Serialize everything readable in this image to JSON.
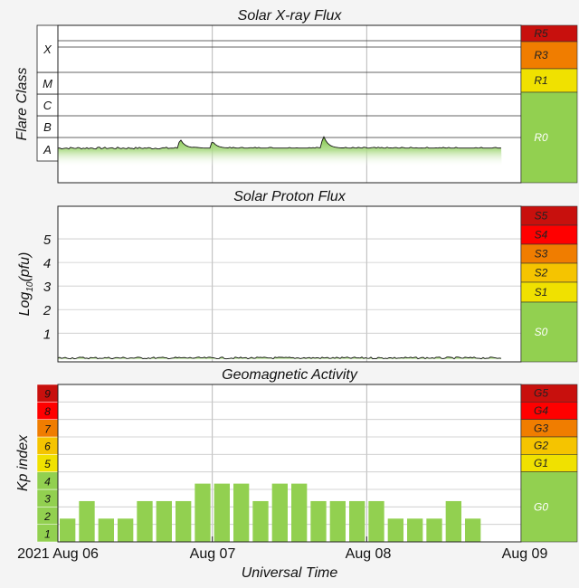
{
  "chart_data": [
    {
      "type": "area",
      "title": "Solar X-ray Flux",
      "ylabel": "Flare Class",
      "y_scale": "log",
      "y_categories": [
        "A",
        "B",
        "C",
        "M",
        "X"
      ],
      "x_range": [
        "2021-08-06T00:00",
        "2021-08-09T00:00"
      ],
      "data_end": "2021-08-08T21:00",
      "baseline_class": "A",
      "baseline_level": 0.55,
      "peaks": [
        {
          "time": "2021-08-06T19:00",
          "level": 0.95
        },
        {
          "time": "2021-08-07T00:00",
          "level": 0.85
        },
        {
          "time": "2021-08-07T17:15",
          "level": 1.1
        }
      ],
      "scale_labels": [
        "R5",
        "R3",
        "R1",
        "R0"
      ],
      "scale_colors": [
        "#c8100d",
        "#f07d00",
        "#f0e100",
        "#92d050"
      ]
    },
    {
      "type": "area",
      "title": "Solar Proton Flux",
      "ylabel": "Log10(pfu)",
      "ylabel_main": "Log",
      "ylabel_sub": "10",
      "ylabel_tail": "(pfu)",
      "ylim": [
        -0.6,
        6
      ],
      "yticks": [
        1,
        2,
        3,
        4,
        5
      ],
      "x_range": [
        "2021-08-06T00:00",
        "2021-08-09T00:00"
      ],
      "data_end": "2021-08-08T21:00",
      "value": -0.05,
      "scale_labels": [
        "S5",
        "S4",
        "S3",
        "S2",
        "S1",
        "S0"
      ],
      "scale_colors": [
        "#c8100d",
        "#ff0000",
        "#f07d00",
        "#f5c400",
        "#f0e100",
        "#92d050"
      ]
    },
    {
      "type": "bar",
      "title": "Geomagnetic Activity",
      "ylabel": "Kp index",
      "xlabel": "Universal Time",
      "ylim": [
        0,
        9
      ],
      "kp_labels": [
        "1",
        "2",
        "3",
        "4",
        "5",
        "6",
        "7",
        "8",
        "9"
      ],
      "kp_colors": [
        "#92d050",
        "#92d050",
        "#92d050",
        "#92d050",
        "#f0e100",
        "#f5c400",
        "#f07d00",
        "#ff0000",
        "#c8100d"
      ],
      "interval_hours": 3,
      "start": "2021-08-06T00:00",
      "values": [
        1.33,
        2.33,
        1.33,
        1.33,
        2.33,
        2.33,
        2.33,
        3.33,
        3.33,
        3.33,
        2.33,
        3.33,
        3.33,
        2.33,
        2.33,
        2.33,
        2.33,
        1.33,
        1.33,
        1.33,
        2.33,
        1.33
      ],
      "x_tick_labels": [
        "2021 Aug 06",
        "Aug 07",
        "Aug 08",
        "Aug 09"
      ],
      "scale_labels": [
        "G5",
        "G4",
        "G3",
        "G2",
        "G1",
        "G0"
      ],
      "scale_colors": [
        "#c8100d",
        "#ff0000",
        "#f07d00",
        "#f5c400",
        "#f0e100",
        "#92d050"
      ]
    }
  ]
}
